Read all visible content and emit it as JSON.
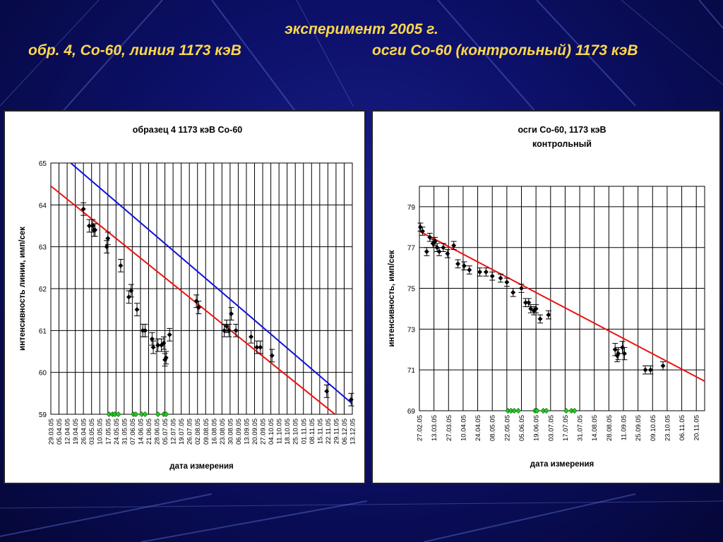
{
  "slide": {
    "title_line1": "эксперимент 2005 г.",
    "title_left": "обр. 4, Со-60, линия 1173 кэВ",
    "title_right": "осги Со-60 (контрольный) 1173 кэВ",
    "title_color": "#ffd84a",
    "background_color": "#0c1068"
  },
  "chart_data": [
    {
      "type": "scatter",
      "title": "образец 4 1173 кэВ Со-60",
      "xlabel": "дата измерения",
      "ylabel": "интенсивность линии, имп/сек",
      "ylim": [
        59,
        65
      ],
      "yticks": [
        59,
        60,
        61,
        62,
        63,
        64,
        65
      ],
      "x_is_date": true,
      "xlim": [
        "2005-03-29",
        "2005-12-13"
      ],
      "xticks": [
        "29.03.05",
        "05.04.05",
        "12.04.05",
        "19.04.05",
        "26.04.05",
        "03.05.05",
        "10.05.05",
        "17.05.05",
        "24.05.05",
        "31.05.05",
        "07.06.05",
        "14.06.05",
        "21.06.05",
        "28.06.05",
        "05.07.05",
        "12.07.05",
        "19.07.05",
        "26.07.05",
        "02.08.05",
        "09.08.05",
        "16.08.05",
        "23.08.05",
        "30.08.05",
        "06.09.05",
        "13.09.05",
        "20.09.05",
        "27.09.05",
        "04.10.05",
        "11.10.05",
        "18.10.05",
        "25.10.05",
        "01.11.05",
        "08.11.05",
        "15.11.05",
        "22.11.05",
        "29.11.05",
        "06.12.05",
        "13.12.05"
      ],
      "grid": true,
      "series": [
        {
          "type": "points_with_errorbars",
          "color": "#000000",
          "points": [
            {
              "x": "2005-04-26",
              "y": 63.9,
              "err": 0.15
            },
            {
              "x": "2005-05-01",
              "y": 63.5,
              "err": 0.15
            },
            {
              "x": "2005-05-04",
              "y": 63.5,
              "err": 0.15
            },
            {
              "x": "2005-05-05",
              "y": 63.4,
              "err": 0.15
            },
            {
              "x": "2005-05-06",
              "y": 63.4,
              "err": 0.15
            },
            {
              "x": "2005-05-16",
              "y": 63.0,
              "err": 0.15
            },
            {
              "x": "2005-05-17",
              "y": 63.2,
              "err": 0.15
            },
            {
              "x": "2005-05-28",
              "y": 62.55,
              "err": 0.15
            },
            {
              "x": "2005-06-04",
              "y": 61.8,
              "err": 0.15
            },
            {
              "x": "2005-06-06",
              "y": 61.95,
              "err": 0.15
            },
            {
              "x": "2005-06-11",
              "y": 61.5,
              "err": 0.15
            },
            {
              "x": "2005-06-16",
              "y": 61.0,
              "err": 0.15
            },
            {
              "x": "2005-06-18",
              "y": 61.0,
              "err": 0.15
            },
            {
              "x": "2005-06-24",
              "y": 60.8,
              "err": 0.15
            },
            {
              "x": "2005-06-25",
              "y": 60.6,
              "err": 0.15
            },
            {
              "x": "2005-06-29",
              "y": 60.65,
              "err": 0.15
            },
            {
              "x": "2005-07-02",
              "y": 60.65,
              "err": 0.15
            },
            {
              "x": "2005-07-04",
              "y": 60.7,
              "err": 0.15
            },
            {
              "x": "2005-07-05",
              "y": 60.3,
              "err": 0.15
            },
            {
              "x": "2005-07-06",
              "y": 60.35,
              "err": 0.15
            },
            {
              "x": "2005-07-09",
              "y": 60.9,
              "err": 0.15
            },
            {
              "x": "2005-08-01",
              "y": 61.7,
              "err": 0.15
            },
            {
              "x": "2005-08-03",
              "y": 61.55,
              "err": 0.15
            },
            {
              "x": "2005-08-25",
              "y": 61.0,
              "err": 0.15
            },
            {
              "x": "2005-08-27",
              "y": 61.1,
              "err": 0.15
            },
            {
              "x": "2005-08-29",
              "y": 61.0,
              "err": 0.15
            },
            {
              "x": "2005-08-31",
              "y": 61.4,
              "err": 0.15
            },
            {
              "x": "2005-09-04",
              "y": 61.0,
              "err": 0.15
            },
            {
              "x": "2005-09-17",
              "y": 60.85,
              "err": 0.15
            },
            {
              "x": "2005-09-22",
              "y": 60.6,
              "err": 0.15
            },
            {
              "x": "2005-09-25",
              "y": 60.6,
              "err": 0.15
            },
            {
              "x": "2005-10-05",
              "y": 60.4,
              "err": 0.15
            },
            {
              "x": "2005-11-21",
              "y": 59.55,
              "err": 0.15
            },
            {
              "x": "2005-12-12",
              "y": 59.35,
              "err": 0.15
            }
          ]
        },
        {
          "type": "points",
          "color": "#22cc22",
          "points": [
            {
              "x": "2005-05-18",
              "y": 59
            },
            {
              "x": "2005-05-21",
              "y": 59
            },
            {
              "x": "2005-05-23",
              "y": 59
            },
            {
              "x": "2005-05-26",
              "y": 59
            },
            {
              "x": "2005-06-08",
              "y": 59
            },
            {
              "x": "2005-06-10",
              "y": 59
            },
            {
              "x": "2005-06-15",
              "y": 59
            },
            {
              "x": "2005-06-18",
              "y": 59
            },
            {
              "x": "2005-06-29",
              "y": 59
            },
            {
              "x": "2005-07-04",
              "y": 59
            },
            {
              "x": "2005-07-06",
              "y": 59
            }
          ]
        },
        {
          "type": "line",
          "color": "#1010dd",
          "points": [
            {
              "x": "2005-04-13",
              "y": 65.05
            },
            {
              "x": "2005-12-13",
              "y": 59.25
            }
          ]
        },
        {
          "type": "line",
          "color": "#ee1111",
          "points": [
            {
              "x": "2005-03-29",
              "y": 64.45
            },
            {
              "x": "2005-11-29",
              "y": 58.98
            }
          ]
        }
      ]
    },
    {
      "type": "scatter",
      "title": "осги Со-60, 1173 кэВ",
      "subtitle": "контрольный",
      "xlabel": "дата измерения",
      "ylabel": "интенсивность, имп/сек",
      "ylim": [
        69,
        80
      ],
      "yticks": [
        69,
        71,
        73,
        75,
        77,
        79
      ],
      "x_is_date": true,
      "xlim": [
        "2005-02-27",
        "2005-11-28"
      ],
      "xticks": [
        "27.02.05",
        "13.03.05",
        "27.03.05",
        "10.04.05",
        "24.04.05",
        "08.05.05",
        "22.05.05",
        "05.06.05",
        "19.06.05",
        "03.07.05",
        "17.07.05",
        "31.07.05",
        "14.08.05",
        "28.08.05",
        "11.09.05",
        "25.09.05",
        "09.10.05",
        "23.10.05",
        "06.11.05",
        "20.11.05"
      ],
      "grid": true,
      "series": [
        {
          "type": "points_with_errorbars",
          "color": "#000000",
          "points": [
            {
              "x": "2005-02-28",
              "y": 78.0,
              "err": 0.2
            },
            {
              "x": "2005-03-02",
              "y": 77.8,
              "err": 0.2
            },
            {
              "x": "2005-03-06",
              "y": 76.8,
              "err": 0.2
            },
            {
              "x": "2005-03-09",
              "y": 77.5,
              "err": 0.2
            },
            {
              "x": "2005-03-12",
              "y": 77.2,
              "err": 0.2
            },
            {
              "x": "2005-03-14",
              "y": 77.3,
              "err": 0.2
            },
            {
              "x": "2005-03-16",
              "y": 77.0,
              "err": 0.2
            },
            {
              "x": "2005-03-18",
              "y": 76.8,
              "err": 0.2
            },
            {
              "x": "2005-03-22",
              "y": 77.0,
              "err": 0.2
            },
            {
              "x": "2005-03-26",
              "y": 76.7,
              "err": 0.2
            },
            {
              "x": "2005-04-01",
              "y": 77.1,
              "err": 0.2
            },
            {
              "x": "2005-04-05",
              "y": 76.2,
              "err": 0.2
            },
            {
              "x": "2005-04-11",
              "y": 76.1,
              "err": 0.2
            },
            {
              "x": "2005-04-16",
              "y": 75.9,
              "err": 0.2
            },
            {
              "x": "2005-04-26",
              "y": 75.8,
              "err": 0.2
            },
            {
              "x": "2005-05-02",
              "y": 75.8,
              "err": 0.2
            },
            {
              "x": "2005-05-08",
              "y": 75.6,
              "err": 0.2
            },
            {
              "x": "2005-05-16",
              "y": 75.5,
              "err": 0.2
            },
            {
              "x": "2005-05-22",
              "y": 75.3,
              "err": 0.2
            },
            {
              "x": "2005-05-28",
              "y": 74.8,
              "err": 0.2
            },
            {
              "x": "2005-06-05",
              "y": 75.0,
              "err": 0.2
            },
            {
              "x": "2005-06-09",
              "y": 74.3,
              "err": 0.2
            },
            {
              "x": "2005-06-12",
              "y": 74.3,
              "err": 0.2
            },
            {
              "x": "2005-06-14",
              "y": 74.0,
              "err": 0.2
            },
            {
              "x": "2005-06-17",
              "y": 73.9,
              "err": 0.2
            },
            {
              "x": "2005-06-19",
              "y": 74.0,
              "err": 0.2
            },
            {
              "x": "2005-06-23",
              "y": 73.5,
              "err": 0.2
            },
            {
              "x": "2005-07-01",
              "y": 73.7,
              "err": 0.2
            },
            {
              "x": "2005-09-03",
              "y": 72.0,
              "err": 0.3
            },
            {
              "x": "2005-09-05",
              "y": 71.7,
              "err": 0.3
            },
            {
              "x": "2005-09-06",
              "y": 71.8,
              "err": 0.3
            },
            {
              "x": "2005-09-10",
              "y": 72.1,
              "err": 0.3
            },
            {
              "x": "2005-09-12",
              "y": 71.8,
              "err": 0.3
            },
            {
              "x": "2005-10-02",
              "y": 71.0,
              "err": 0.2
            },
            {
              "x": "2005-10-07",
              "y": 71.0,
              "err": 0.2
            },
            {
              "x": "2005-10-19",
              "y": 71.2,
              "err": 0.2
            }
          ]
        },
        {
          "type": "points",
          "color": "#22cc22",
          "points": [
            {
              "x": "2005-05-23",
              "y": 69
            },
            {
              "x": "2005-05-26",
              "y": 69
            },
            {
              "x": "2005-05-29",
              "y": 69
            },
            {
              "x": "2005-06-02",
              "y": 69
            },
            {
              "x": "2005-06-18",
              "y": 69
            },
            {
              "x": "2005-06-20",
              "y": 69
            },
            {
              "x": "2005-06-26",
              "y": 69
            },
            {
              "x": "2005-06-29",
              "y": 69
            },
            {
              "x": "2005-07-18",
              "y": 69
            },
            {
              "x": "2005-07-23",
              "y": 69
            },
            {
              "x": "2005-07-26",
              "y": 69
            }
          ]
        },
        {
          "type": "line",
          "color": "#ee1111",
          "points": [
            {
              "x": "2005-02-27",
              "y": 77.8
            },
            {
              "x": "2005-11-28",
              "y": 70.45
            }
          ]
        }
      ]
    }
  ]
}
